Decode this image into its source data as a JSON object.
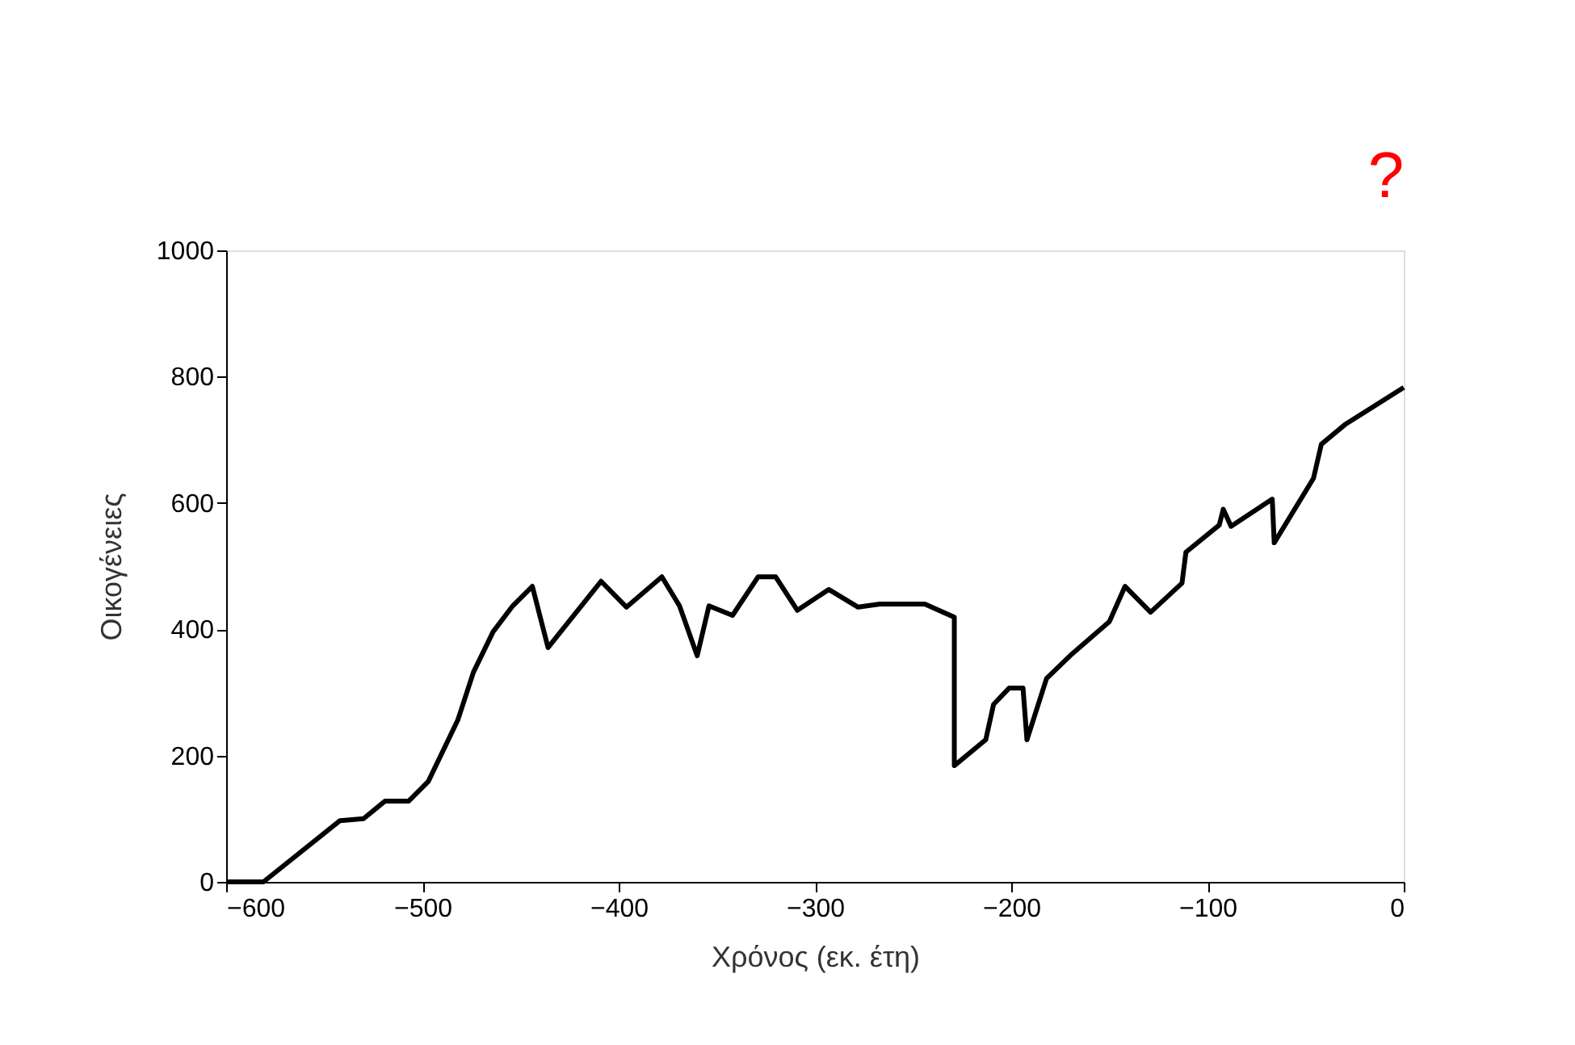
{
  "chart_data": {
    "type": "line",
    "xlabel": "Χρόνος (εκ. έτη)",
    "ylabel": "Οικογένειες",
    "x": [
      -600,
      -581,
      -542,
      -530,
      -519,
      -507,
      -497,
      -482,
      -474,
      -464,
      -454,
      -444,
      -436,
      -409,
      -396,
      -378,
      -369,
      -360,
      -354,
      -342,
      -329,
      -320,
      -309,
      -293,
      -278,
      -267,
      -244,
      -229,
      -229,
      -213,
      -209,
      -201,
      -194,
      -192,
      -182,
      -169,
      -150,
      -142,
      -129,
      -113,
      -111,
      -94,
      -92,
      -88,
      -67,
      -66,
      -46,
      -42,
      -30,
      0
    ],
    "series": [
      {
        "color": "#000000",
        "values": [
          0,
          0,
          97,
          100,
          128,
          128,
          159,
          256,
          332,
          396,
          437,
          468,
          371,
          476,
          435,
          483,
          437,
          358,
          437,
          422,
          483,
          483,
          430,
          463,
          435,
          440,
          440,
          419,
          184,
          225,
          281,
          307,
          307,
          225,
          322,
          361,
          412,
          468,
          427,
          473,
          522,
          565,
          590,
          563,
          606,
          537,
          639,
          693,
          724,
          783
        ]
      }
    ],
    "xlim": [
      -600,
      0
    ],
    "xticks": [
      -600,
      -500,
      -400,
      -300,
      -200,
      -100,
      0
    ],
    "ylim": [
      0,
      1000
    ],
    "yticks": [
      0,
      200,
      400,
      600,
      800,
      1000
    ],
    "grid": false,
    "marker": "none",
    "line_style": "solid",
    "annotations": [
      "?"
    ]
  }
}
